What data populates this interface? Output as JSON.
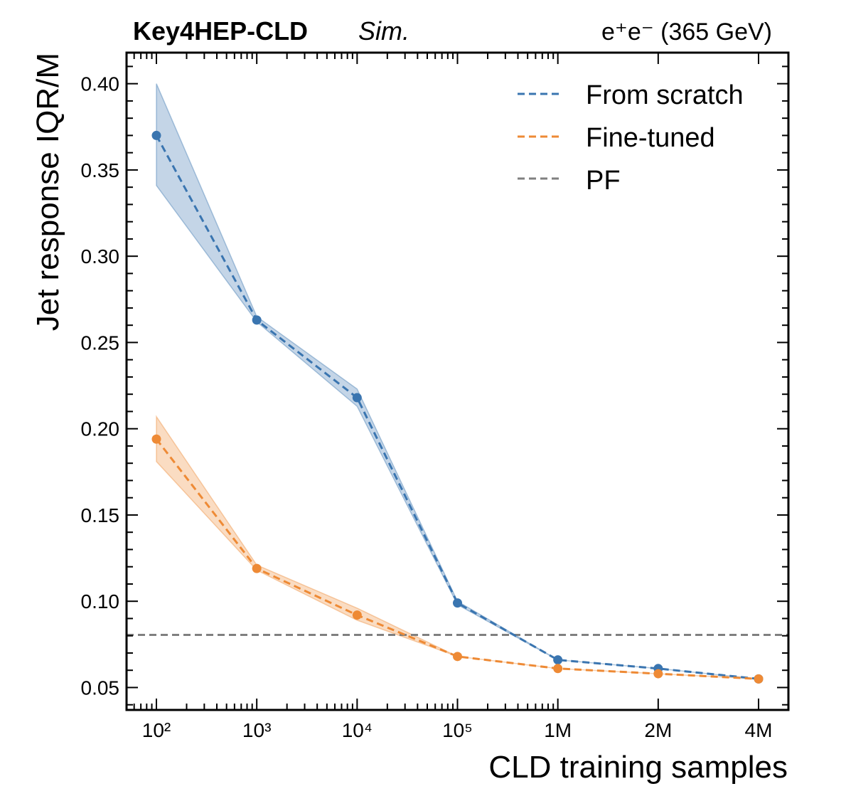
{
  "chart_data": {
    "type": "line",
    "title_left_bold": "Key4HEP-CLD",
    "title_left_italic": "Sim.",
    "title_right": "e⁺e⁻ (365 GeV)",
    "xlabel": "CLD training samples",
    "ylabel": "Jet response IQR/M",
    "categories": [
      "10²",
      "10³",
      "10⁴",
      "10⁵",
      "1M",
      "2M",
      "4M"
    ],
    "ylim": [
      0.037,
      0.418
    ],
    "yticks": [
      0.05,
      0.1,
      0.15,
      0.2,
      0.25,
      0.3,
      0.35,
      0.4
    ],
    "ytick_labels": [
      "0.05",
      "0.10",
      "0.15",
      "0.20",
      "0.25",
      "0.30",
      "0.35",
      "0.40"
    ],
    "legend_position": "top-right",
    "series": [
      {
        "name": "From scratch",
        "color": "#3a75b0",
        "values": [
          0.37,
          0.263,
          0.218,
          0.099,
          0.066,
          0.061,
          0.055
        ],
        "band_low": [
          0.341,
          0.262,
          0.213,
          0.098,
          0.066,
          0.061,
          0.055
        ],
        "band_high": [
          0.4,
          0.265,
          0.223,
          0.1,
          0.066,
          0.061,
          0.055
        ]
      },
      {
        "name": "Fine-tuned",
        "color": "#ee8a35",
        "values": [
          0.194,
          0.119,
          0.092,
          0.068,
          0.061,
          0.058,
          0.055
        ],
        "band_low": [
          0.181,
          0.118,
          0.089,
          0.068,
          0.061,
          0.058,
          0.055
        ],
        "band_high": [
          0.207,
          0.121,
          0.096,
          0.068,
          0.061,
          0.058,
          0.055
        ]
      }
    ],
    "reference_line": {
      "name": "PF",
      "color": "#808080",
      "value": 0.0805
    }
  }
}
